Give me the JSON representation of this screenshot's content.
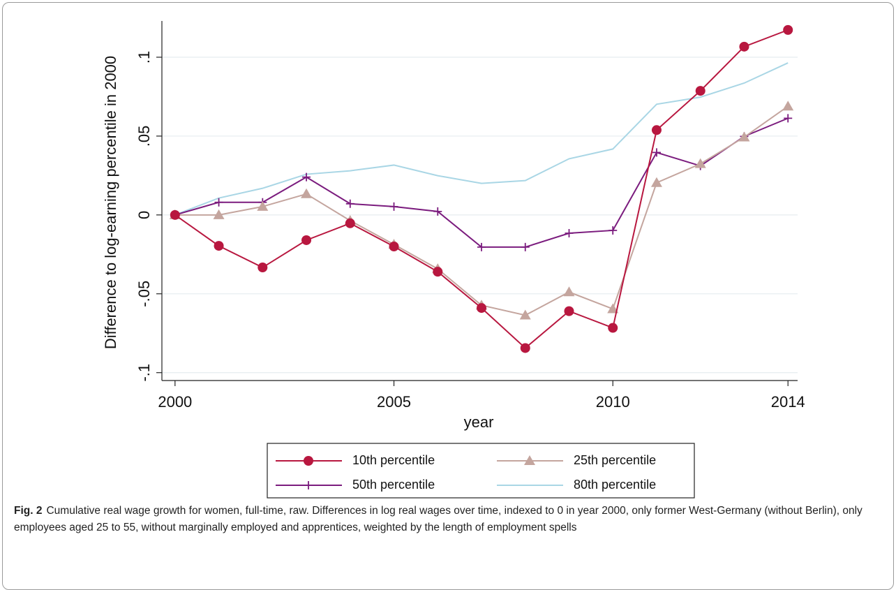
{
  "chart_data": {
    "type": "line",
    "y_label": "Difference to log-earning percentile in 2000",
    "x_label": "year",
    "x": [
      2000,
      2001,
      2002,
      2003,
      2004,
      2005,
      2006,
      2007,
      2008,
      2009,
      2010,
      2011,
      2012,
      2013,
      2014
    ],
    "series": [
      {
        "name": "10th percentile",
        "color": "#b8173f",
        "marker": "circle",
        "values": [
          0,
          -0.0196,
          -0.0333,
          -0.016,
          -0.0053,
          -0.02,
          -0.036,
          -0.059,
          -0.0844,
          -0.061,
          -0.0716,
          0.0538,
          0.0787,
          0.1067,
          0.1173
        ]
      },
      {
        "name": "25th percentile",
        "color": "#c4a59e",
        "marker": "triangle",
        "values": [
          0,
          0,
          0.0053,
          0.0133,
          -0.0036,
          -0.0187,
          -0.0342,
          -0.0573,
          -0.0636,
          -0.0489,
          -0.0596,
          0.0204,
          0.0324,
          0.0493,
          0.0689
        ]
      },
      {
        "name": "50th percentile",
        "color": "#7b1c7e",
        "marker": "plus",
        "values": [
          0,
          0.008,
          0.008,
          0.024,
          0.0071,
          0.0053,
          0.0022,
          -0.0204,
          -0.0204,
          -0.0116,
          -0.0098,
          0.0396,
          0.0311,
          0.0498,
          0.0613
        ]
      },
      {
        "name": "80th percentile",
        "color": "#a9d6e5",
        "marker": "none",
        "values": [
          0,
          0.0107,
          0.0169,
          0.0258,
          0.028,
          0.0316,
          0.0249,
          0.02,
          0.0218,
          0.0356,
          0.0418,
          0.0702,
          0.0747,
          0.0836,
          0.0964
        ]
      }
    ],
    "xlim": [
      1999.7,
      2014.22
    ],
    "xticks": [
      2000,
      2005,
      2010,
      2014
    ],
    "ylim": [
      -0.105,
      0.123
    ],
    "yticks": [
      {
        "value": -0.1,
        "label": "-.1"
      },
      {
        "value": -0.05,
        "label": "-.05"
      },
      0,
      {
        "value": 0.05,
        "label": ".05"
      },
      {
        "value": 0.1,
        "label": ".1"
      }
    ],
    "grid": true,
    "legend": "bottom"
  },
  "caption": {
    "label": "Fig. 2",
    "text": "Cumulative real wage growth for women, full-time, raw. Differences in log real wages over time, indexed to 0 in year 2000, only former West-Germany (without Berlin), only employees aged 25 to 55, without marginally employed and apprentices, weighted by the length of employment spells"
  }
}
